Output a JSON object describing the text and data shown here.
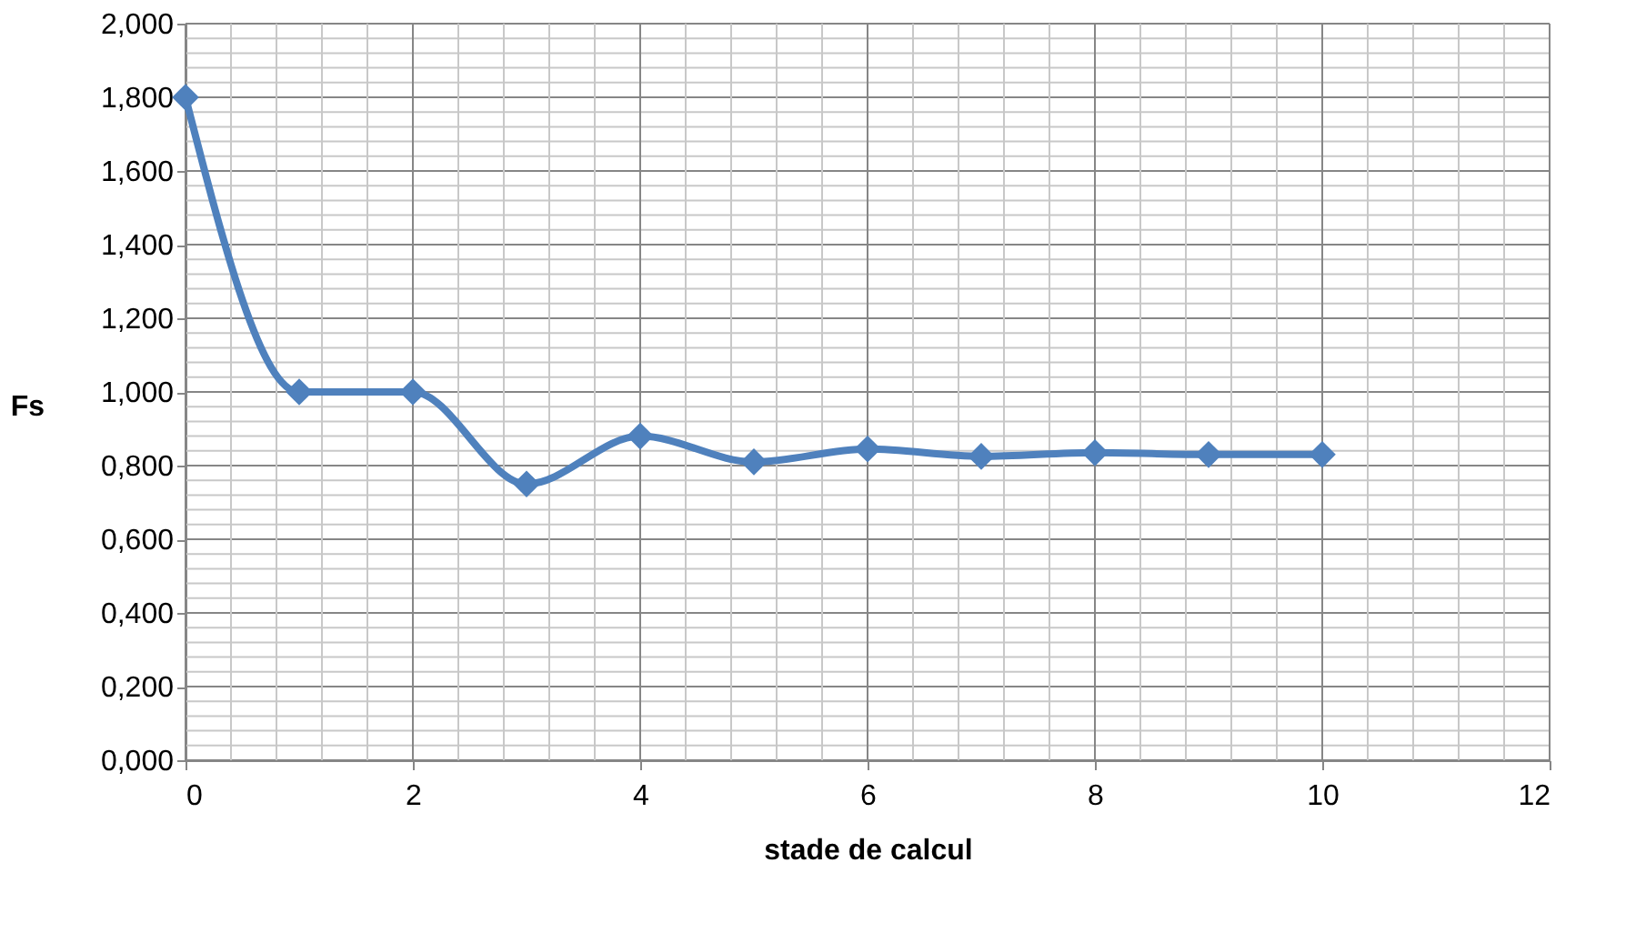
{
  "chart_data": {
    "type": "line",
    "xlabel": "stade  de calcul",
    "ylabel": "Fs",
    "x": [
      0,
      1,
      2,
      3,
      4,
      5,
      6,
      7,
      8,
      9,
      10
    ],
    "series": [
      {
        "color": "#4f81bd",
        "values": [
          1.8,
          1.0,
          1.0,
          0.75,
          0.88,
          0.81,
          0.845,
          0.825,
          0.835,
          0.83,
          0.83
        ]
      }
    ],
    "xlim": [
      0,
      12
    ],
    "xticks": [
      0,
      2,
      4,
      6,
      8,
      10,
      12
    ],
    "ylim": [
      0,
      2
    ],
    "yticks": [
      {
        "value": 0,
        "label": "0,000"
      },
      {
        "value": 0.2,
        "label": "0,200"
      },
      {
        "value": 0.4,
        "label": "0,400"
      },
      {
        "value": 0.6,
        "label": "0,600"
      },
      {
        "value": 0.8,
        "label": "0,800"
      },
      {
        "value": 1.0,
        "label": "1,000"
      },
      {
        "value": 1.2,
        "label": "1,200"
      },
      {
        "value": 1.4,
        "label": "1,400"
      },
      {
        "value": 1.6,
        "label": "1,600"
      },
      {
        "value": 1.8,
        "label": "1,800"
      },
      {
        "value": 2.0,
        "label": "2,000"
      }
    ],
    "grid": true,
    "marker": "diamond",
    "line_style": "solid"
  }
}
